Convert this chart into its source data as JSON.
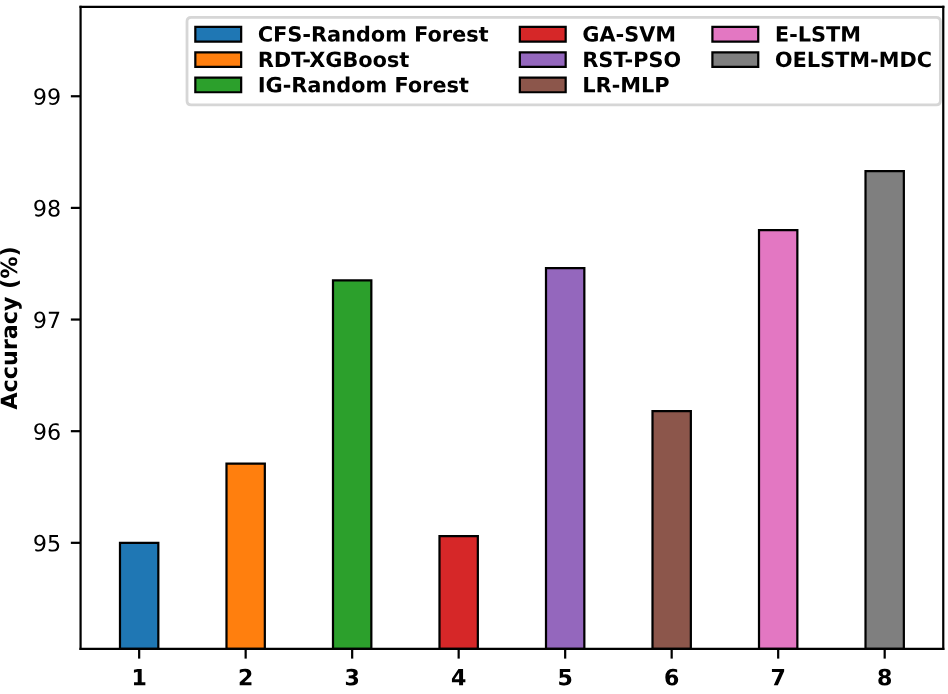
{
  "chart_data": {
    "type": "bar",
    "ylabel": "Accuracy (%)",
    "categories": [
      "1",
      "2",
      "3",
      "4",
      "5",
      "6",
      "7",
      "8"
    ],
    "series": [
      {
        "name": "CFS-Random Forest",
        "color": "#1f77b4",
        "values": [
          95.0,
          null,
          null,
          null,
          null,
          null,
          null,
          null
        ]
      },
      {
        "name": "RDT-XGBoost",
        "color": "#ff7f0e",
        "values": [
          null,
          95.71,
          null,
          null,
          null,
          null,
          null,
          null
        ]
      },
      {
        "name": "IG-Random Forest",
        "color": "#2ca02c",
        "values": [
          null,
          null,
          97.35,
          null,
          null,
          null,
          null,
          null
        ]
      },
      {
        "name": "GA-SVM",
        "color": "#d62728",
        "values": [
          null,
          null,
          null,
          95.06,
          null,
          null,
          null,
          null
        ]
      },
      {
        "name": "RST-PSO",
        "color": "#9467bd",
        "values": [
          null,
          null,
          null,
          null,
          97.46,
          null,
          null,
          null
        ]
      },
      {
        "name": "LR-MLP",
        "color": "#8c564b",
        "values": [
          null,
          null,
          null,
          null,
          null,
          96.18,
          null,
          null
        ]
      },
      {
        "name": "E-LSTM",
        "color": "#e377c2",
        "values": [
          null,
          null,
          null,
          null,
          null,
          null,
          97.8,
          null
        ]
      },
      {
        "name": "OELSTM-MDC",
        "color": "#7f7f7f",
        "values": [
          null,
          null,
          null,
          null,
          null,
          null,
          null,
          98.33
        ]
      }
    ],
    "ylim": [
      94.05,
      99.8
    ],
    "yticks": [
      95,
      96,
      97,
      98,
      99
    ],
    "grid": false,
    "legend": "top"
  }
}
